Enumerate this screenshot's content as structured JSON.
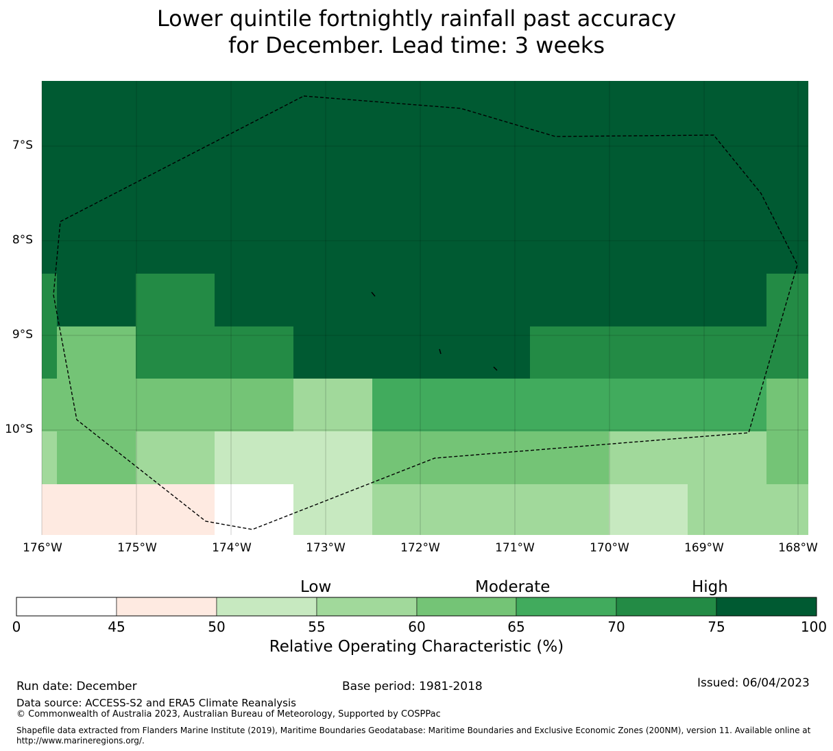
{
  "title": {
    "line1": "Lower quintile fortnightly rainfall past accuracy",
    "line2": "for December. Lead time: 3 weeks"
  },
  "map": {
    "lat_labels": [
      "7°S",
      "8°S",
      "9°S",
      "10°S"
    ],
    "lon_labels": [
      "176°W",
      "175°W",
      "174°W",
      "173°W",
      "172°W",
      "171°W",
      "170°W",
      "169°W",
      "168°W"
    ],
    "value_classes": [
      "50-55",
      "50-55",
      "50-55",
      "50-55",
      "50-55",
      "50-55",
      "50-55",
      "50-55",
      "50-55",
      "50-55",
      "50-55",
      "50-55",
      "50-55",
      "50-55",
      "50-55",
      "50-55"
    ],
    "grid_rows": [
      [
        "75-100",
        "75-100",
        "75-100",
        "75-100",
        "75-100",
        "75-100",
        "75-100",
        "75-100",
        "75-100",
        "75-100",
        "75-100"
      ],
      [
        "75-100",
        "75-100",
        "75-100",
        "75-100",
        "75-100",
        "75-100",
        "75-100",
        "75-100",
        "75-100",
        "75-100",
        "75-100"
      ],
      [
        "75-100",
        "75-100",
        "75-100",
        "75-100",
        "75-100",
        "75-100",
        "75-100",
        "75-100",
        "75-100",
        "75-100",
        "75-100"
      ],
      [
        "70-75",
        "75-100",
        "70-75",
        "75-100",
        "75-100",
        "75-100",
        "75-100",
        "75-100",
        "75-100",
        "75-100",
        "70-75"
      ],
      [
        "70-75",
        "60-65",
        "70-75",
        "70-75",
        "75-100",
        "75-100",
        "75-100",
        "70-75",
        "70-75",
        "70-75",
        "70-75"
      ],
      [
        "60-65",
        "60-65",
        "60-65",
        "60-65",
        "55-60",
        "65-70",
        "65-70",
        "65-70",
        "65-70",
        "65-70",
        "60-65"
      ],
      [
        "55-60",
        "60-65",
        "55-60",
        "50-55",
        "50-55",
        "60-65",
        "60-65",
        "60-65",
        "55-60",
        "55-60",
        "60-65"
      ],
      [
        "45-50",
        "45-50",
        "45-50",
        "0-45",
        "50-55",
        "55-60",
        "55-60",
        "55-60",
        "50-55",
        "55-60",
        "55-60"
      ]
    ]
  },
  "colorbar": {
    "categories": [
      "Low",
      "Moderate",
      "High"
    ],
    "ticks": [
      "0",
      "45",
      "50",
      "55",
      "60",
      "65",
      "70",
      "75",
      "100"
    ],
    "colors": [
      "#ffffff",
      "#feeae1",
      "#c7e9c0",
      "#a1d99b",
      "#74c476",
      "#41ab5d",
      "#238b45",
      "#005a32"
    ],
    "label": "Relative Operating Characteristic (%)"
  },
  "footer": {
    "run_date": "Run date: December",
    "base_period": "Base period: 1981-2018",
    "issued": "Issued: 06/04/2023",
    "data_source": "Data source: ACCESS-S2 and ERA5 Climate Reanalysis",
    "copyright": "© Commonwealth of Australia 2023, Australian Bureau of Meteorology, Supported by COSPPac",
    "shapefile_line1": "Shapefile data extracted from Flanders Marine Institute (2019), Maritime Boundaries Geodatabase: Maritime Boundaries and Exclusive Economic Zones (200NM), version 11. Available online at",
    "shapefile_line2": "http://www.marineregions.org/."
  }
}
